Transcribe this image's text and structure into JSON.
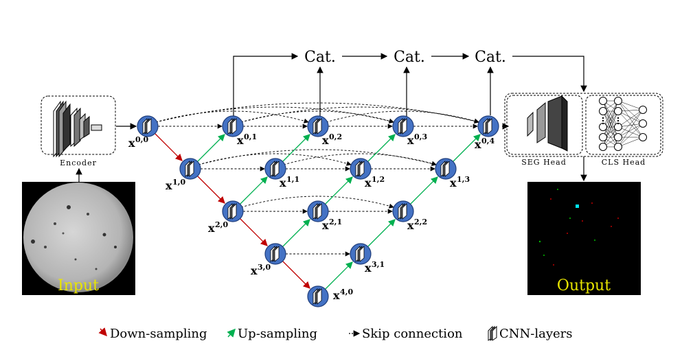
{
  "nodes": [
    {
      "id": "x00",
      "i": 0,
      "j": 0,
      "label_base": "x",
      "label_sup": "0,0"
    },
    {
      "id": "x10",
      "i": 1,
      "j": 0,
      "label_base": "x",
      "label_sup": "1,0"
    },
    {
      "id": "x20",
      "i": 2,
      "j": 0,
      "label_base": "x",
      "label_sup": "2,0"
    },
    {
      "id": "x30",
      "i": 3,
      "j": 0,
      "label_base": "x",
      "label_sup": "3,0"
    },
    {
      "id": "x40",
      "i": 4,
      "j": 0,
      "label_base": "x",
      "label_sup": "4,0"
    },
    {
      "id": "x01",
      "i": 0,
      "j": 1,
      "label_base": "x",
      "label_sup": "0,1"
    },
    {
      "id": "x11",
      "i": 1,
      "j": 1,
      "label_base": "x",
      "label_sup": "1,1"
    },
    {
      "id": "x21",
      "i": 2,
      "j": 1,
      "label_base": "x",
      "label_sup": "2,1"
    },
    {
      "id": "x31",
      "i": 3,
      "j": 1,
      "label_base": "x",
      "label_sup": "3,1"
    },
    {
      "id": "x02",
      "i": 0,
      "j": 2,
      "label_base": "x",
      "label_sup": "0,2"
    },
    {
      "id": "x12",
      "i": 1,
      "j": 2,
      "label_base": "x",
      "label_sup": "1,2"
    },
    {
      "id": "x22",
      "i": 2,
      "j": 2,
      "label_base": "x",
      "label_sup": "2,2"
    },
    {
      "id": "x03",
      "i": 0,
      "j": 3,
      "label_base": "x",
      "label_sup": "0,3"
    },
    {
      "id": "x13",
      "i": 1,
      "j": 3,
      "label_base": "x",
      "label_sup": "1,3"
    },
    {
      "id": "x04",
      "i": 0,
      "j": 4,
      "label_base": "x",
      "label_sup": "0,4"
    }
  ],
  "cat_label": "Cat.",
  "encoder_label": "Encoder",
  "seg_head_label": "SEG Head",
  "cls_head_label": "CLS Head",
  "input_label": "Input",
  "output_label": "Output",
  "legend": {
    "down": "Down-sampling",
    "up": "Up-sampling",
    "skip": "Skip connection",
    "cnn": "CNN-layers"
  },
  "colors": {
    "node_fill": "#4472c4",
    "down_arrow": "#c00000",
    "up_arrow": "#00b050",
    "label_overlay": "#e9e600"
  }
}
